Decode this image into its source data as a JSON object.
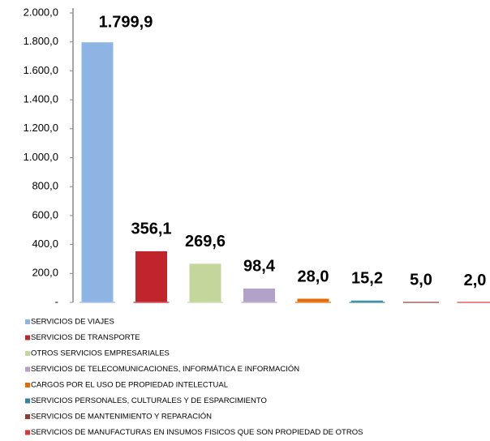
{
  "chart_data": {
    "type": "bar",
    "series": [
      {
        "name": "SERVICIOS DE VIAJES",
        "color": "#8db4e2",
        "values": [
          1799.9
        ],
        "value_labels": [
          "1.799,9"
        ]
      },
      {
        "name": "SERVICIOS DE TRANSPORTE",
        "color": "#c0252b",
        "values": [
          356.1
        ],
        "value_labels": [
          "356,1"
        ]
      },
      {
        "name": "OTROS SERVICIOS EMPRESARIALES",
        "color": "#c3d69b",
        "values": [
          269.6
        ],
        "value_labels": [
          "269,6"
        ]
      },
      {
        "name": "SERVICIOS DE TELECOMUNICACIONES, INFORMÁTICA E INFORMACIÓN",
        "color": "#b3a2c7",
        "values": [
          98.4
        ],
        "value_labels": [
          "98,4"
        ]
      },
      {
        "name": "CARGOS POR EL USO DE PROPIEDAD INTELECTUAL",
        "color": "#e36c09",
        "values": [
          28.0
        ],
        "value_labels": [
          "28,0"
        ]
      },
      {
        "name": "SERVICIOS PERSONALES, CULTURALES Y DE ESPARCIMIENTO",
        "color": "#31859c",
        "values": [
          15.2
        ],
        "value_labels": [
          "15,2"
        ]
      },
      {
        "name": "SERVICIOS DE MANTENIMIENTO Y REPARACIÓN",
        "color": "#953735",
        "values": [
          5.0
        ],
        "value_labels": [
          "5,0"
        ]
      },
      {
        "name": "SERVICIOS DE MANUFACTURAS EN INSUMOS FISICOS QUE SON PROPIEDAD DE OTROS",
        "color": "#d9383a",
        "values": [
          2.0
        ],
        "value_labels": [
          "2,0"
        ]
      }
    ],
    "ylim": [
      0,
      2000
    ],
    "yticks": [
      {
        "value": 0,
        "label": "-"
      },
      {
        "value": 200,
        "label": "200,0"
      },
      {
        "value": 400,
        "label": "400,0"
      },
      {
        "value": 600,
        "label": "600,0"
      },
      {
        "value": 800,
        "label": "800,0"
      },
      {
        "value": 1000,
        "label": "1.000,0"
      },
      {
        "value": 1200,
        "label": "1.200,0"
      },
      {
        "value": 1400,
        "label": "1.400,0"
      },
      {
        "value": 1600,
        "label": "1.600,0"
      },
      {
        "value": 1800,
        "label": "1.800,0"
      },
      {
        "value": 2000,
        "label": "2.000,0"
      }
    ]
  }
}
